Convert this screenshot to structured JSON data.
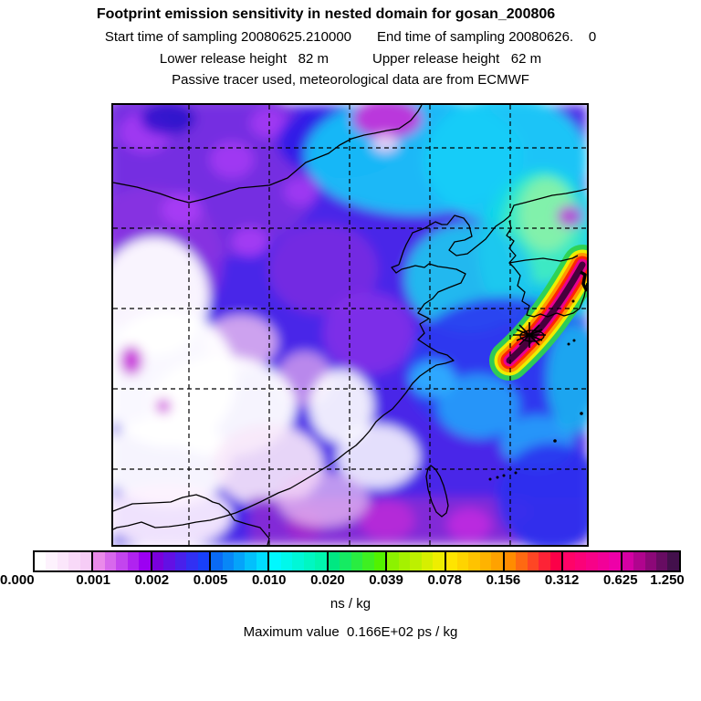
{
  "header": {
    "title": "Footprint emission sensitivity in nested domain for gosan_200806",
    "line2_left": "Start time of sampling 20080625.210000",
    "line2_right": "End time of sampling 20080626.    0",
    "line3_left": "Lower release height   82 m",
    "line3_right": "Upper release height   62 m",
    "line4": "Passive tracer used, meteorological data are from ECMWF"
  },
  "colorbar": {
    "unit_label": "ns / kg",
    "ticks": [
      "0.000",
      "0.001",
      "0.002",
      "0.005",
      "0.010",
      "0.020",
      "0.039",
      "0.078",
      "0.156",
      "0.312",
      "0.625",
      "1.250"
    ],
    "segments": [
      {
        "from": "#ffffff",
        "to": "#f6ccf6"
      },
      {
        "from": "#ea8aea",
        "to": "#9c00f2"
      },
      {
        "from": "#7a00dc",
        "to": "#1840fa"
      },
      {
        "from": "#0a6af4",
        "to": "#00dcff"
      },
      {
        "from": "#00f8ff",
        "to": "#00f6ae"
      },
      {
        "from": "#00e882",
        "to": "#52f200"
      },
      {
        "from": "#8cf200",
        "to": "#eeee00"
      },
      {
        "from": "#ffe400",
        "to": "#ffa200"
      },
      {
        "from": "#ff8c00",
        "to": "#fc0048"
      },
      {
        "from": "#ff0368",
        "to": "#ee00a8"
      },
      {
        "from": "#d400a4",
        "to": "#43104c"
      }
    ]
  },
  "footer": {
    "max_value_label": "Maximum value  0.166E+02 ps / kg"
  },
  "chart_data": {
    "type": "heatmap",
    "subtype": "filled_contour_footprint_map",
    "title": "Footprint emission sensitivity in nested domain for gosan_200806",
    "region": "East Asia (China, Mongolia border, Korean peninsula, Taiwan, Yellow Sea)",
    "contour_levels": [
      0.0,
      0.001,
      0.002,
      0.005,
      0.01,
      0.02,
      0.039,
      0.078,
      0.156,
      0.312,
      0.625,
      1.25
    ],
    "unit": "ns / kg",
    "maximum_value": "0.166E+02 ps / kg",
    "legend_position": "bottom",
    "grid": "dashed lat-lon grid, 5 vertical and 5 horizontal lines",
    "station_marker": {
      "symbol": "asterisk",
      "location": "Gosan, Jeju Island (south of Korea)"
    },
    "qualitative_field": [
      {
        "area": "northwest and left-center",
        "value_range": "0.000-0.001",
        "color": "white/pale pink"
      },
      {
        "area": "top-left quadrant",
        "value_range": "0.002-0.005",
        "color": "violet/blue with magenta patches"
      },
      {
        "area": "top-center-right and east of Korea",
        "value_range": "0.010-0.039",
        "color": "cyan/teal/green"
      },
      {
        "area": "bottom strip and center",
        "value_range": "0.001-0.005",
        "color": "magenta/purple"
      },
      {
        "area": "plume SE of Korea toward Japan",
        "value_range": "0.156-1.250",
        "color": "yellow/orange/red/magenta with dark purple core"
      }
    ]
  }
}
